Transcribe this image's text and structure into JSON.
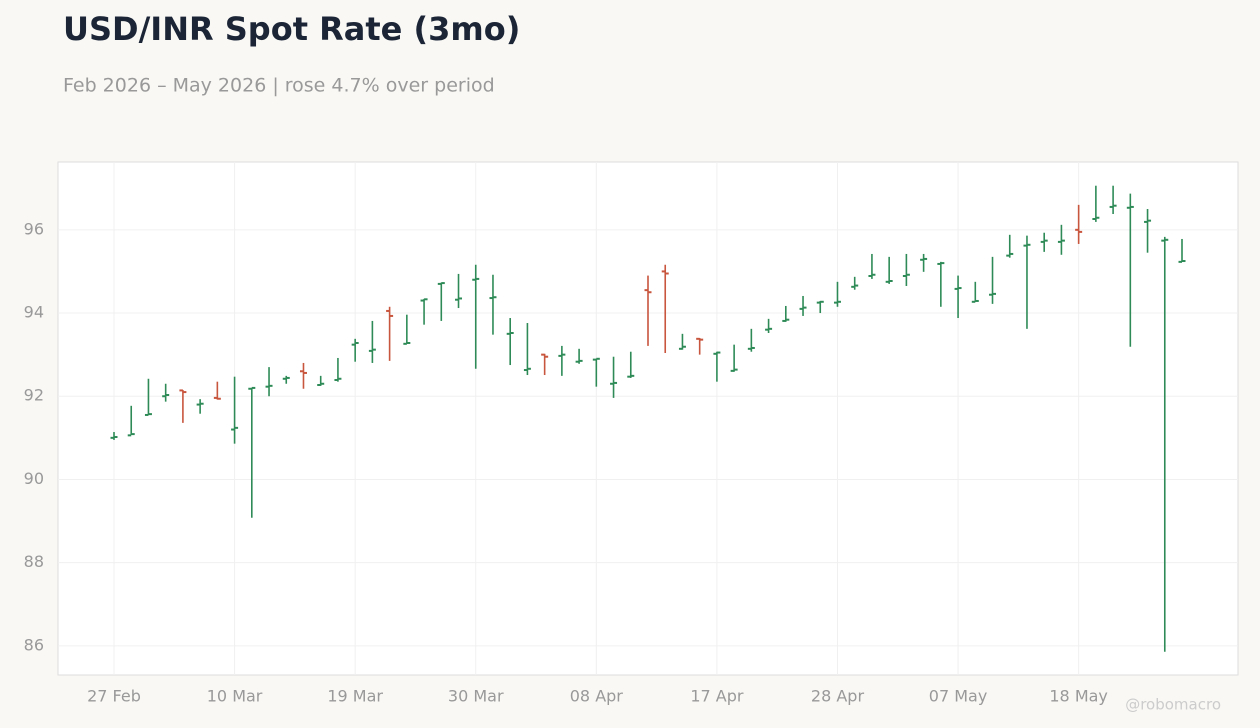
{
  "chart_data": {
    "type": "ohlc",
    "title": "USD/INR Spot Rate (3mo)",
    "subtitle": "Feb 2026 – May 2026 | rose 4.7% over period",
    "watermark": "@robomacro",
    "categories": [
      "27 Feb",
      null,
      null,
      null,
      null,
      null,
      null,
      "10 Mar",
      null,
      null,
      null,
      null,
      null,
      null,
      "19 Mar",
      null,
      null,
      null,
      null,
      null,
      null,
      "30 Mar",
      null,
      null,
      null,
      null,
      null,
      null,
      "08 Apr",
      null,
      null,
      null,
      null,
      null,
      null,
      "17 Apr",
      null,
      null,
      null,
      null,
      null,
      null,
      "28 Apr",
      null,
      null,
      null,
      null,
      null,
      null,
      "07 May",
      null,
      null,
      null,
      null,
      null,
      null,
      "18 May",
      null,
      null,
      null,
      null,
      null,
      null
    ],
    "open": [
      91.0,
      91.06,
      91.55,
      92.0,
      92.14,
      91.8,
      91.96,
      91.2,
      92.18,
      92.23,
      92.42,
      92.6,
      92.27,
      92.39,
      93.24,
      93.09,
      94.05,
      93.26,
      94.3,
      94.7,
      94.32,
      94.8,
      94.36,
      93.5,
      92.63,
      93.0,
      92.97,
      92.83,
      92.88,
      92.3,
      92.47,
      94.55,
      95.0,
      93.14,
      93.38,
      93.02,
      92.61,
      93.14,
      93.6,
      93.81,
      94.1,
      94.25,
      94.25,
      94.63,
      94.89,
      94.75,
      94.89,
      95.28,
      95.18,
      94.58,
      94.27,
      94.44,
      95.38,
      95.62,
      95.71,
      95.71,
      96.0,
      96.26,
      96.55,
      96.53,
      96.19,
      95.74,
      95.23
    ],
    "high": [
      91.14,
      91.77,
      92.42,
      92.3,
      92.15,
      91.93,
      92.35,
      92.47,
      92.2,
      92.7,
      92.49,
      92.8,
      92.49,
      92.92,
      93.38,
      93.81,
      94.15,
      93.96,
      94.34,
      94.73,
      94.94,
      95.16,
      94.92,
      93.88,
      93.76,
      93.02,
      93.21,
      93.14,
      92.9,
      92.95,
      93.07,
      94.9,
      95.16,
      93.5,
      93.4,
      93.07,
      93.24,
      93.62,
      93.86,
      94.17,
      94.41,
      94.29,
      94.75,
      94.87,
      95.42,
      95.35,
      95.42,
      95.42,
      95.23,
      94.9,
      94.75,
      95.35,
      95.88,
      95.86,
      95.93,
      96.12,
      96.6,
      97.06,
      97.06,
      96.87,
      96.5,
      95.83,
      95.78
    ],
    "low": [
      90.95,
      91.07,
      91.55,
      91.87,
      91.36,
      91.58,
      91.92,
      90.86,
      89.08,
      92.0,
      92.3,
      92.18,
      92.25,
      92.35,
      92.83,
      92.8,
      92.85,
      93.26,
      93.72,
      93.81,
      94.12,
      92.66,
      93.48,
      92.75,
      92.51,
      92.51,
      92.49,
      92.78,
      92.23,
      91.96,
      92.44,
      93.21,
      93.04,
      93.12,
      93.0,
      92.35,
      92.59,
      93.07,
      93.52,
      93.79,
      93.93,
      94.0,
      94.15,
      94.56,
      94.82,
      94.7,
      94.65,
      94.99,
      94.15,
      93.88,
      94.27,
      94.22,
      95.33,
      93.62,
      95.47,
      95.4,
      95.66,
      96.19,
      96.38,
      93.19,
      95.45,
      85.86,
      95.23
    ],
    "close": [
      91.02,
      91.09,
      91.57,
      92.03,
      92.1,
      91.82,
      91.94,
      91.24,
      92.2,
      92.25,
      92.44,
      92.56,
      92.3,
      92.42,
      93.28,
      93.12,
      93.93,
      93.28,
      94.33,
      94.72,
      94.35,
      94.82,
      94.38,
      93.52,
      92.66,
      92.95,
      93.0,
      92.85,
      92.9,
      92.32,
      92.49,
      94.5,
      94.95,
      93.19,
      93.36,
      93.05,
      92.64,
      93.16,
      93.62,
      93.84,
      94.13,
      94.27,
      94.27,
      94.66,
      94.92,
      94.77,
      94.92,
      95.3,
      95.2,
      94.6,
      94.29,
      94.46,
      95.42,
      95.64,
      95.74,
      95.74,
      95.95,
      96.29,
      96.58,
      96.55,
      96.22,
      95.76,
      95.25
    ],
    "up_color": "#2e8b57",
    "down_color": "#c8553d",
    "ylim": [
      85.3,
      97.63
    ],
    "yticks": [
      86,
      88,
      90,
      92,
      94,
      96
    ],
    "grid": true
  }
}
